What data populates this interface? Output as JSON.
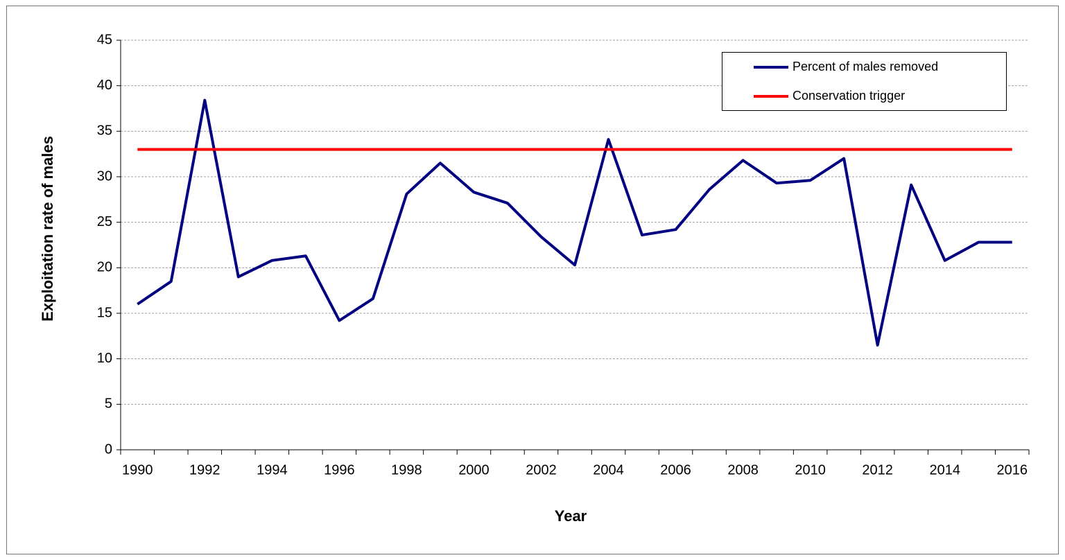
{
  "chart_data": {
    "type": "line",
    "y_label": "Exploitation rate of males",
    "x_label": "Year",
    "categories": [
      "1990",
      null,
      "1992",
      null,
      "1994",
      null,
      "1996",
      null,
      "1998",
      null,
      "2000",
      null,
      "2002",
      null,
      "2004",
      null,
      "2006",
      null,
      "2008",
      null,
      "2010",
      null,
      "2012",
      null,
      "2014",
      null,
      "2016"
    ],
    "series": [
      {
        "name": "Percent of males removed",
        "color": "#000080",
        "values": [
          16,
          18.5,
          38.4,
          19.0,
          20.8,
          21.3,
          14.2,
          16.6,
          28.1,
          31.5,
          28.3,
          27.1,
          23.4,
          20.3,
          34.1,
          23.6,
          24.2,
          28.6,
          31.8,
          29.3,
          29.6,
          32.0,
          11.5,
          29.1,
          20.8,
          22.8,
          22.8
        ]
      },
      {
        "name": "Conservation trigger",
        "color": "#ff0000",
        "values": [
          33,
          33,
          33,
          33,
          33,
          33,
          33,
          33,
          33,
          33,
          33,
          33,
          33,
          33,
          33,
          33,
          33,
          33,
          33,
          33,
          33,
          33,
          33,
          33,
          33,
          33,
          33
        ]
      }
    ],
    "ylim": [
      0,
      45
    ],
    "yticks": [
      0,
      5,
      10,
      15,
      20,
      25,
      30,
      35,
      40,
      45
    ],
    "grid": true,
    "legend": "top-right"
  }
}
